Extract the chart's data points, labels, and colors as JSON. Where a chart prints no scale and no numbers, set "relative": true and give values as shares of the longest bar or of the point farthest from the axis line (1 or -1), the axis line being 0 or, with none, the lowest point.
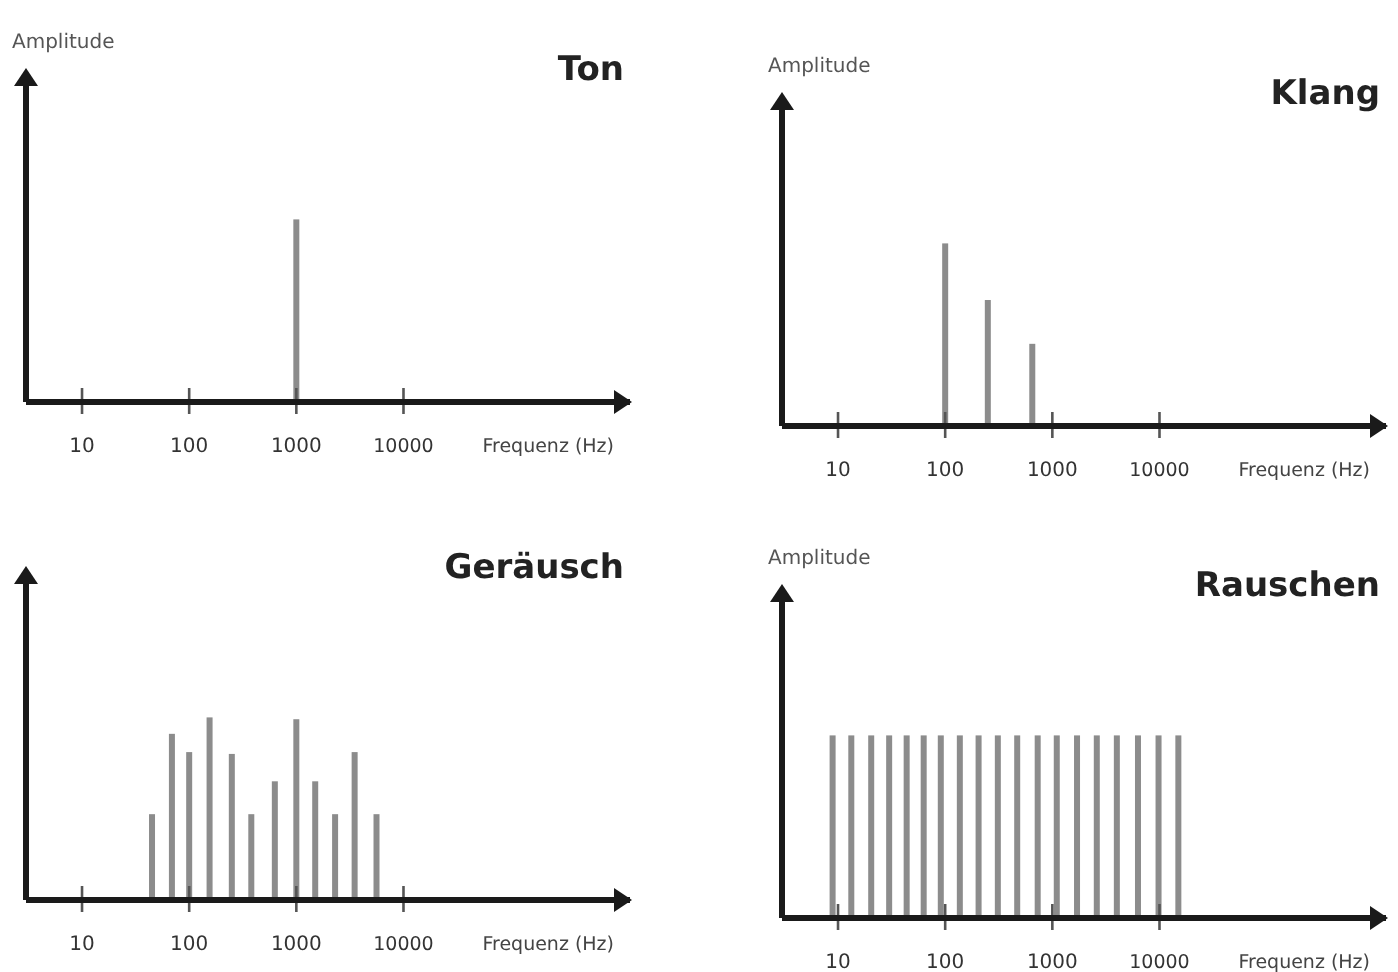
{
  "chart_data": [
    {
      "type": "bar",
      "title": "Ton",
      "ylabel": "Amplitude",
      "xlabel": "Frequenz (Hz)",
      "relative": true,
      "log": "x",
      "xlim": [
        3,
        1300000
      ],
      "xticks": [
        10,
        100,
        1000,
        10000
      ],
      "x": [
        1000
      ],
      "values": [
        1
      ],
      "color": "#8c8c8c"
    },
    {
      "type": "bar",
      "title": "Klang",
      "ylabel": "Amplitude",
      "xlabel": "Frequenz (Hz)",
      "relative": true,
      "log": "x",
      "xlim": [
        3,
        1300000
      ],
      "xticks": [
        10,
        100,
        1000,
        10000
      ],
      "x": [
        100,
        250,
        650
      ],
      "values": [
        1,
        0.69,
        0.45
      ],
      "color": "#8c8c8c"
    },
    {
      "type": "bar",
      "title": "Geräusch",
      "xlabel": "Frequenz (Hz)",
      "relative": true,
      "log": "x",
      "xlim": [
        3,
        1300000
      ],
      "xticks": [
        10,
        100,
        1000,
        10000
      ],
      "x": [
        45,
        69,
        100,
        155,
        250,
        380,
        630,
        1000,
        1500,
        2300,
        3500,
        5600
      ],
      "values": [
        0.47,
        0.91,
        0.81,
        1,
        0.8,
        0.47,
        0.65,
        0.99,
        0.65,
        0.47,
        0.81,
        0.47
      ],
      "color": "#8c8c8c"
    },
    {
      "type": "bar",
      "title": "Rauschen",
      "ylabel": "Amplitude",
      "xlabel": "Frequenz (Hz)",
      "relative": true,
      "log": "x",
      "xlim": [
        3,
        1300000
      ],
      "xticks": [
        10,
        100,
        1000,
        10000
      ],
      "x": [
        8.9,
        13.3,
        20.4,
        30,
        43.7,
        63,
        91,
        137,
        205,
        310,
        470,
        730,
        1100,
        1700,
        2600,
        4000,
        6300,
        9800,
        15000
      ],
      "values": [
        1,
        1,
        1,
        1,
        1,
        1,
        1,
        1,
        1,
        1,
        1,
        1,
        1,
        1,
        1,
        1,
        1,
        1,
        1
      ],
      "color": "#8c8c8c"
    }
  ]
}
